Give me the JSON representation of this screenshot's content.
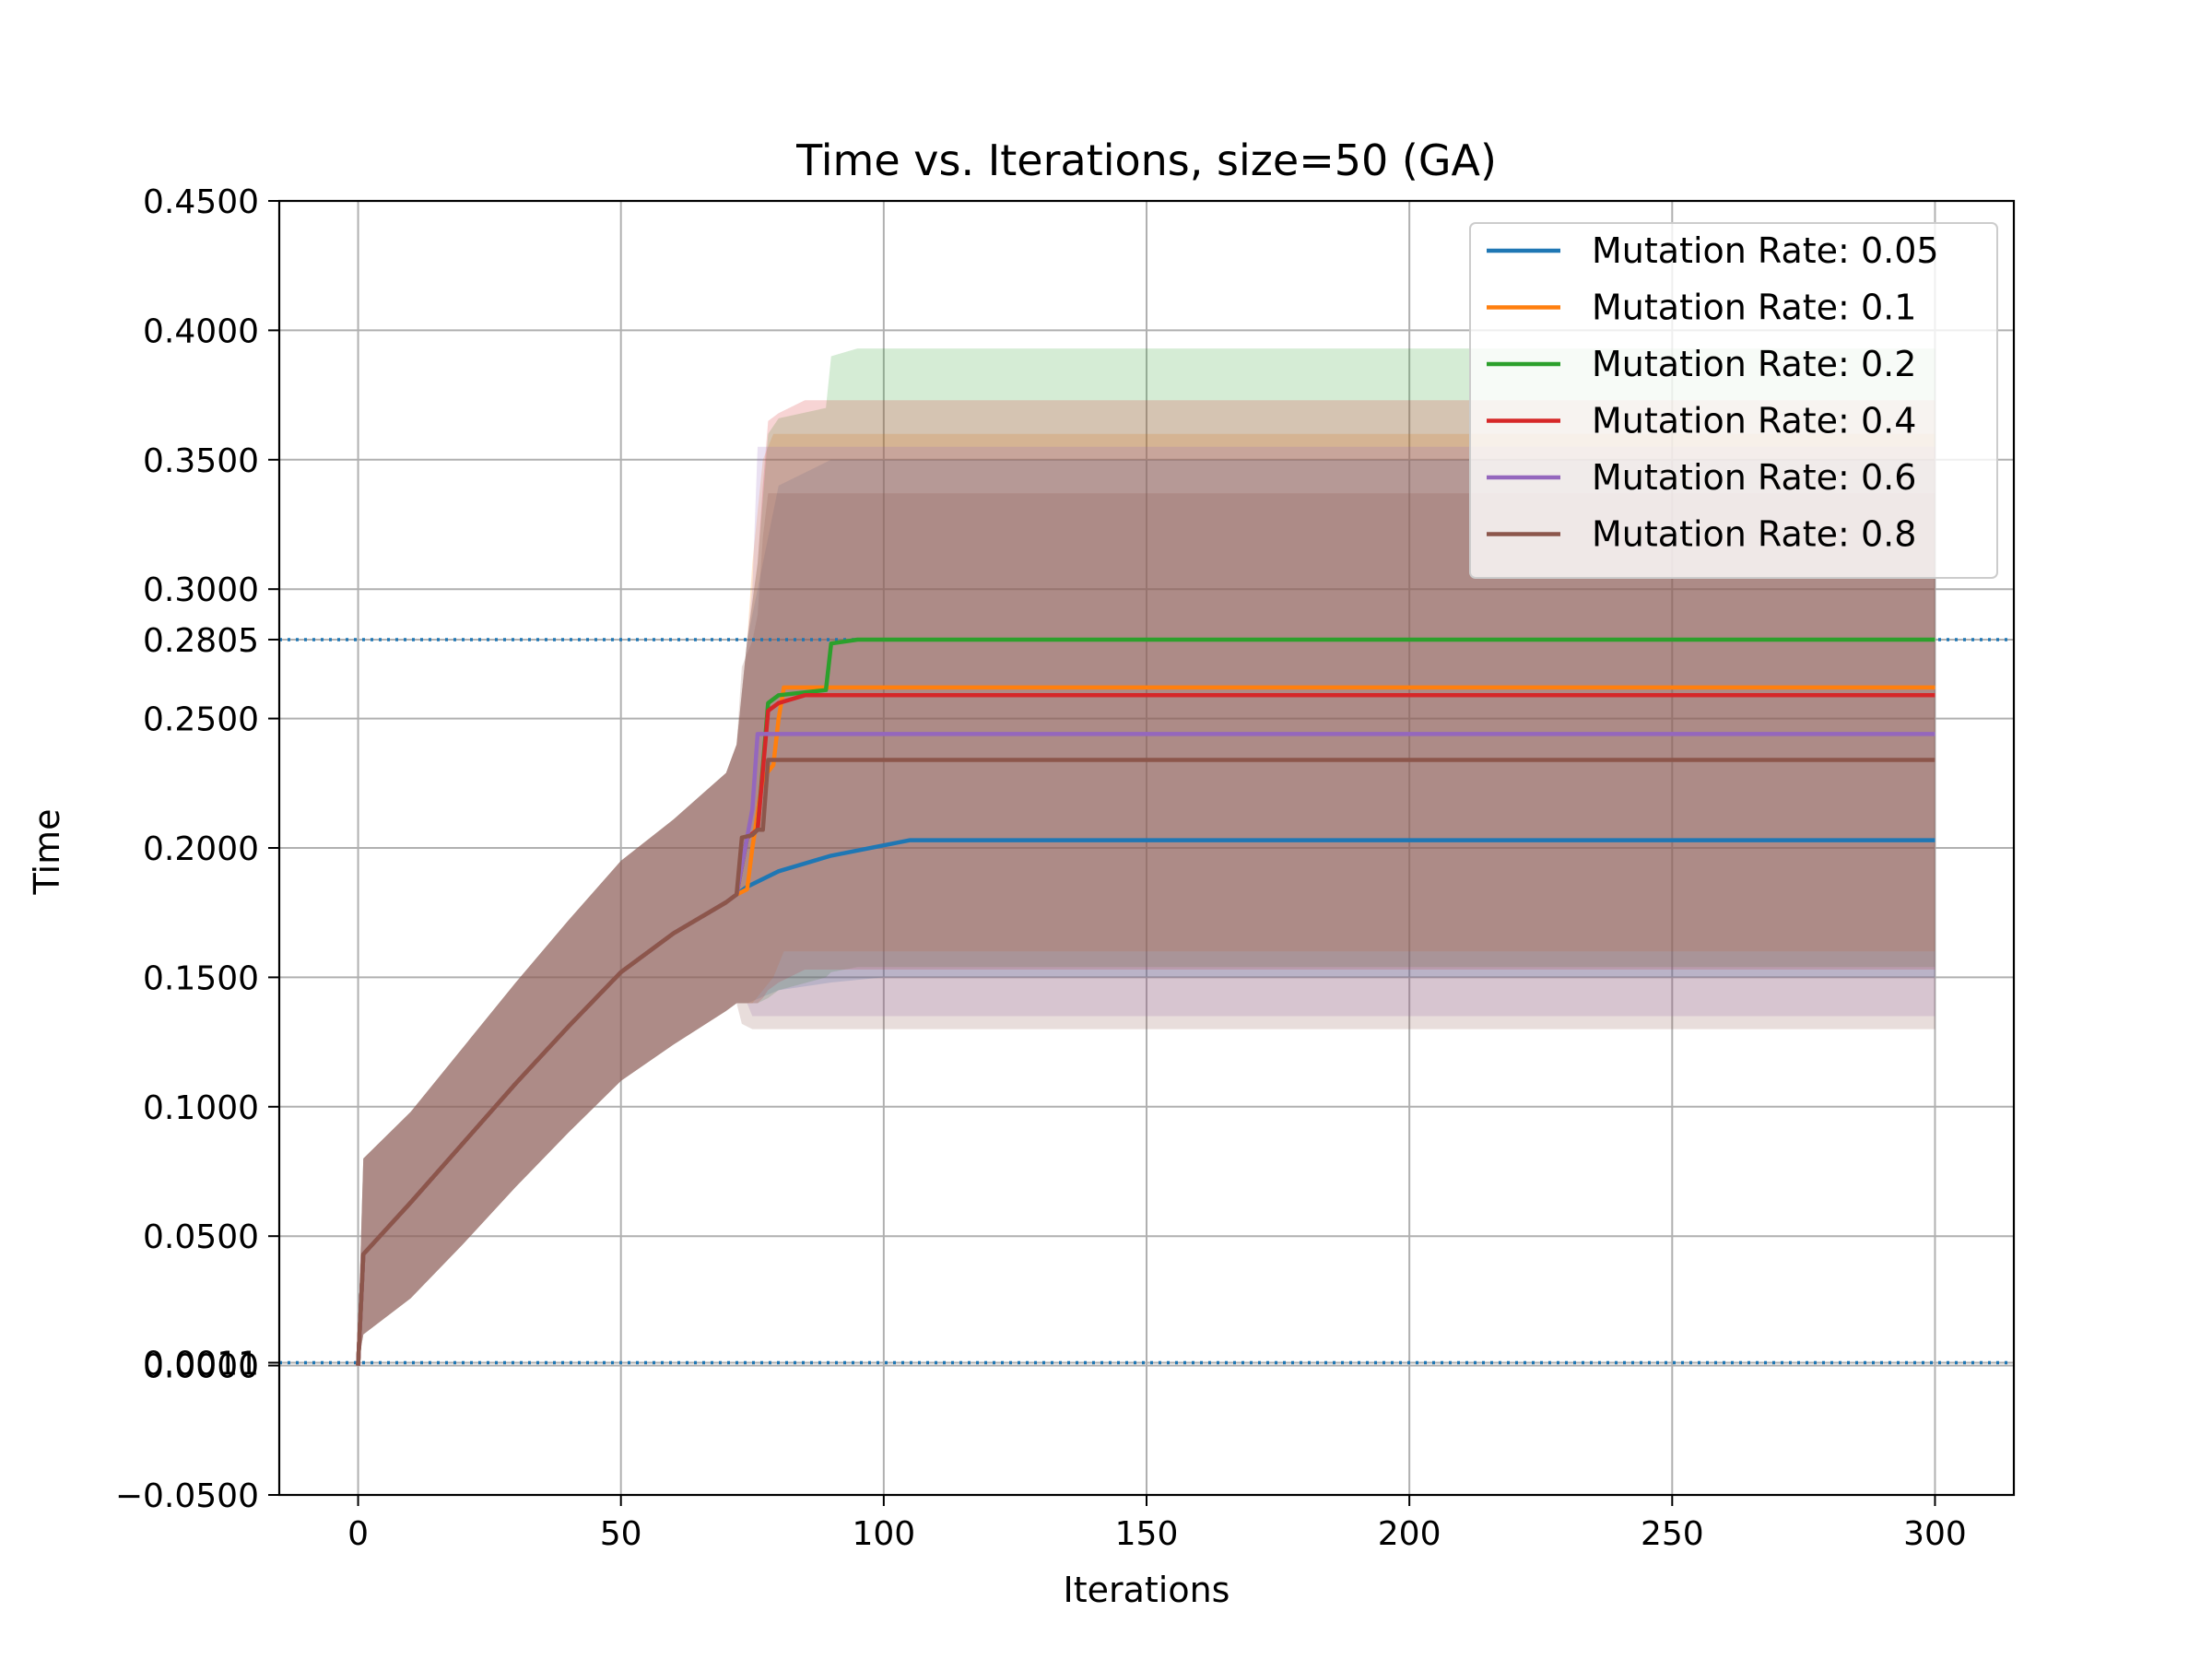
{
  "chart_data": {
    "type": "line",
    "title": "Time vs. Iterations, size=50 (GA)",
    "xlabel": "Iterations",
    "ylabel": "Time",
    "xlim": [
      -15,
      315
    ],
    "ylim": [
      -0.05,
      0.45
    ],
    "x_ticks": [
      0,
      50,
      100,
      150,
      200,
      250,
      300
    ],
    "x_tick_labels": [
      "0",
      "50",
      "100",
      "150",
      "200",
      "250",
      "300"
    ],
    "y_ticks": [
      -0.05,
      0.0,
      0.0011,
      0.05,
      0.1,
      0.15,
      0.2,
      0.25,
      0.2805,
      0.3,
      0.35,
      0.4,
      0.45
    ],
    "y_tick_labels": [
      "−0.0500",
      "0.0000",
      "0.0011",
      "0.0500",
      "0.1000",
      "0.1500",
      "0.2000",
      "0.2500",
      "0.2805",
      "0.3000",
      "0.3500",
      "0.4000",
      "0.4500"
    ],
    "grid": true,
    "legend_position": "top-right",
    "reference_lines": [
      0.2805,
      0.0011
    ],
    "series": [
      {
        "name": "Mutation Rate: 0.05",
        "color": "#1f77b4",
        "x": [
          0,
          1,
          10,
          20,
          30,
          40,
          50,
          60,
          70,
          72,
          74,
          80,
          90,
          100,
          105,
          300
        ],
        "y": [
          0.0,
          0.043,
          0.063,
          0.086,
          0.109,
          0.131,
          0.152,
          0.167,
          0.179,
          0.182,
          0.185,
          0.191,
          0.197,
          0.201,
          0.203,
          0.203
        ],
        "upper": [
          0.01,
          0.08,
          0.098,
          0.123,
          0.148,
          0.172,
          0.195,
          0.211,
          0.229,
          0.24,
          0.28,
          0.34,
          0.35,
          0.35,
          0.35,
          0.35
        ],
        "lower": [
          0.0,
          0.012,
          0.026,
          0.047,
          0.069,
          0.09,
          0.11,
          0.124,
          0.137,
          0.14,
          0.14,
          0.145,
          0.148,
          0.15,
          0.15,
          0.15
        ]
      },
      {
        "name": "Mutation Rate: 0.1",
        "color": "#ff7f0e",
        "x": [
          0,
          1,
          10,
          20,
          30,
          40,
          50,
          60,
          70,
          72,
          74,
          75,
          77,
          79,
          80,
          81,
          300
        ],
        "y": [
          0.0,
          0.043,
          0.063,
          0.086,
          0.109,
          0.131,
          0.152,
          0.167,
          0.179,
          0.182,
          0.184,
          0.2,
          0.227,
          0.232,
          0.25,
          0.262,
          0.262
        ],
        "upper": [
          0.01,
          0.08,
          0.098,
          0.123,
          0.148,
          0.172,
          0.195,
          0.211,
          0.229,
          0.24,
          0.28,
          0.31,
          0.35,
          0.36,
          0.36,
          0.36,
          0.36
        ],
        "lower": [
          0.0,
          0.012,
          0.026,
          0.047,
          0.069,
          0.09,
          0.11,
          0.124,
          0.137,
          0.14,
          0.14,
          0.14,
          0.145,
          0.15,
          0.155,
          0.16,
          0.16
        ]
      },
      {
        "name": "Mutation Rate: 0.2",
        "color": "#2ca02c",
        "x": [
          0,
          1,
          10,
          20,
          30,
          40,
          50,
          60,
          70,
          72,
          74,
          76,
          78,
          80,
          89,
          90,
          95,
          300
        ],
        "y": [
          0.0,
          0.043,
          0.063,
          0.086,
          0.109,
          0.131,
          0.152,
          0.167,
          0.179,
          0.182,
          0.204,
          0.207,
          0.256,
          0.259,
          0.261,
          0.279,
          0.2805,
          0.2805
        ],
        "upper": [
          0.01,
          0.08,
          0.098,
          0.123,
          0.148,
          0.172,
          0.195,
          0.211,
          0.229,
          0.24,
          0.28,
          0.31,
          0.36,
          0.366,
          0.37,
          0.39,
          0.393,
          0.393
        ],
        "lower": [
          0.0,
          0.012,
          0.026,
          0.047,
          0.069,
          0.09,
          0.11,
          0.124,
          0.137,
          0.14,
          0.14,
          0.14,
          0.142,
          0.145,
          0.15,
          0.152,
          0.154,
          0.154
        ]
      },
      {
        "name": "Mutation Rate: 0.4",
        "color": "#d62728",
        "x": [
          0,
          1,
          10,
          20,
          30,
          40,
          50,
          60,
          70,
          72,
          74,
          76,
          77,
          78,
          80,
          85,
          300
        ],
        "y": [
          0.0,
          0.043,
          0.063,
          0.086,
          0.109,
          0.131,
          0.152,
          0.167,
          0.179,
          0.182,
          0.204,
          0.207,
          0.23,
          0.253,
          0.256,
          0.259,
          0.259
        ],
        "upper": [
          0.01,
          0.08,
          0.098,
          0.123,
          0.148,
          0.172,
          0.195,
          0.211,
          0.229,
          0.24,
          0.28,
          0.31,
          0.34,
          0.365,
          0.368,
          0.373,
          0.373
        ],
        "lower": [
          0.0,
          0.012,
          0.026,
          0.047,
          0.069,
          0.09,
          0.11,
          0.124,
          0.137,
          0.14,
          0.14,
          0.14,
          0.142,
          0.145,
          0.148,
          0.153,
          0.153
        ]
      },
      {
        "name": "Mutation Rate: 0.6",
        "color": "#9467bd",
        "x": [
          0,
          1,
          10,
          20,
          30,
          40,
          50,
          60,
          70,
          72,
          74,
          75,
          76,
          300
        ],
        "y": [
          0.0,
          0.043,
          0.063,
          0.086,
          0.109,
          0.131,
          0.152,
          0.167,
          0.179,
          0.182,
          0.204,
          0.215,
          0.244,
          0.244
        ],
        "upper": [
          0.01,
          0.08,
          0.098,
          0.123,
          0.148,
          0.172,
          0.195,
          0.211,
          0.229,
          0.24,
          0.28,
          0.3,
          0.355,
          0.355
        ],
        "lower": [
          0.0,
          0.012,
          0.026,
          0.047,
          0.069,
          0.09,
          0.11,
          0.124,
          0.137,
          0.14,
          0.14,
          0.135,
          0.135,
          0.135
        ]
      },
      {
        "name": "Mutation Rate: 0.8",
        "color": "#8c564b",
        "x": [
          0,
          1,
          10,
          20,
          30,
          40,
          50,
          60,
          70,
          72,
          73,
          75,
          76,
          77,
          78,
          300
        ],
        "y": [
          0.0,
          0.043,
          0.063,
          0.086,
          0.109,
          0.131,
          0.152,
          0.167,
          0.179,
          0.182,
          0.204,
          0.205,
          0.207,
          0.207,
          0.234,
          0.234
        ],
        "upper": [
          0.01,
          0.08,
          0.098,
          0.123,
          0.148,
          0.172,
          0.195,
          0.211,
          0.229,
          0.24,
          0.27,
          0.28,
          0.29,
          0.32,
          0.337,
          0.337
        ],
        "lower": [
          0.0,
          0.012,
          0.026,
          0.047,
          0.069,
          0.09,
          0.11,
          0.124,
          0.137,
          0.14,
          0.132,
          0.13,
          0.13,
          0.13,
          0.13,
          0.13
        ]
      }
    ]
  }
}
